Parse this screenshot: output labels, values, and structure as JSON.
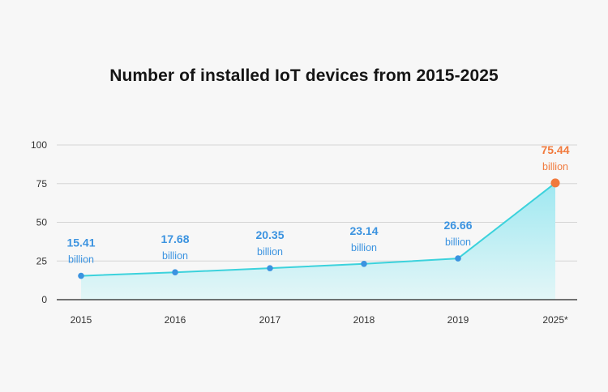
{
  "chart_data": {
    "type": "area",
    "title": "Number of installed IoT devices from 2015-2025",
    "categories": [
      "2015",
      "2016",
      "2017",
      "2018",
      "2019",
      "2025*"
    ],
    "values": [
      15.41,
      17.68,
      20.35,
      23.14,
      26.66,
      75.44
    ],
    "value_labels": [
      "15.41",
      "17.68",
      "20.35",
      "23.14",
      "26.66",
      "75.44"
    ],
    "unit_label": "billion",
    "yticks": [
      0,
      25,
      50,
      75,
      100
    ],
    "ylim": [
      0,
      100
    ],
    "grid": true,
    "colors": {
      "line": "#3cd2dc",
      "fill_top": "#9fe8f1",
      "fill_bottom": "#e3f6f7",
      "point": "#3b93e0",
      "label": "#3b93e0",
      "highlight": "#f17a3d",
      "grid": "#d6d6d6",
      "axis": "#222222"
    },
    "highlight_index": 5
  }
}
